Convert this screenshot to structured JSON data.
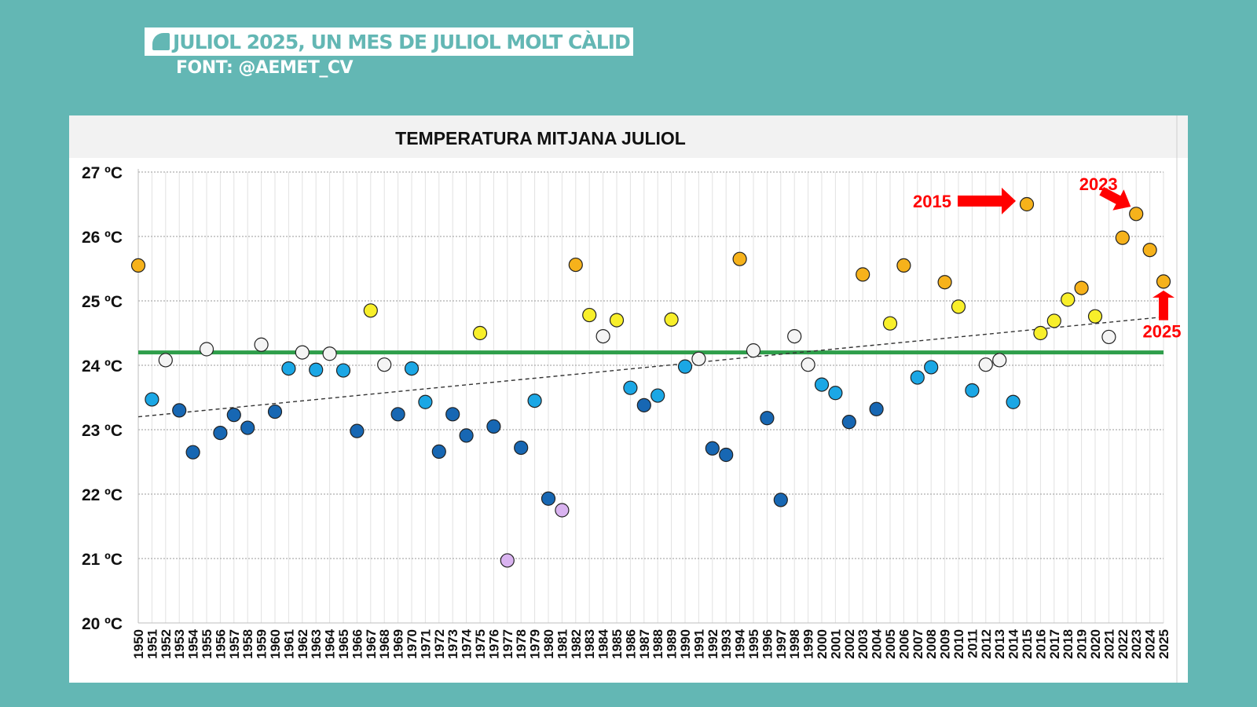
{
  "header": {
    "title": "JULIOL 2025, UN MES DE JULIOL MOLT CÀLID",
    "source": "FONT: @AEMET_CV"
  },
  "colors": {
    "background": "#63b7b4",
    "very_cold": "#1767b3",
    "cold": "#1ba7e5",
    "normal": "#f4f4f4",
    "warm": "#f8ef2a",
    "very_warm": "#f6b21b",
    "extremely_cold": "#d9b3f0",
    "average_line": "#2e9e4a",
    "annotation": "#ff0000"
  },
  "chart_data": {
    "type": "scatter",
    "title": "TEMPERATURA MITJANA JULIOL",
    "ylim": [
      20,
      27
    ],
    "yticks": [
      20,
      21,
      22,
      23,
      24,
      25,
      26,
      27
    ],
    "ytick_labels": [
      "20 ºC",
      "21 ºC",
      "22 ºC",
      "23 ºC",
      "24 ºC",
      "25 ºC",
      "26 ºC",
      "27 ºC"
    ],
    "x_tick_labels": [
      "1950",
      "1951",
      "1952",
      "1953",
      "1954",
      "1955",
      "1956",
      "1957",
      "1958",
      "1959",
      "1960",
      "1961",
      "1962",
      "1963",
      "1964",
      "1965",
      "1966",
      "1967",
      "1968",
      "1969",
      "1970",
      "1971",
      "1972",
      "1973",
      "1974",
      "1975",
      "1976",
      "1977",
      "1978",
      "1979",
      "1980",
      "1981",
      "1982",
      "1983",
      "1984",
      "1985",
      "1986",
      "1987",
      "1988",
      "1989",
      "1990",
      "1991",
      "1992",
      "1993",
      "1994",
      "1995",
      "1996",
      "1997",
      "1998",
      "1999",
      "2000",
      "2001",
      "2002",
      "2003",
      "2004",
      "2005",
      "2006",
      "2007",
      "2008",
      "2009",
      "2010",
      "2011",
      "2012",
      "2013",
      "2014",
      "2015",
      "2016",
      "2017",
      "2018",
      "2019",
      "2020",
      "2021",
      "2022",
      "2023",
      "2024",
      "2025"
    ],
    "reference_line": 24.2,
    "trend": {
      "start": 23.2,
      "end": 24.75
    },
    "points": [
      {
        "year": 1950,
        "value": 25.55,
        "category": "very_warm"
      },
      {
        "year": 1951,
        "value": 23.47,
        "category": "cold"
      },
      {
        "year": 1952,
        "value": 24.08,
        "category": "normal"
      },
      {
        "year": 1953,
        "value": 23.3,
        "category": "very_cold"
      },
      {
        "year": 1954,
        "value": 22.65,
        "category": "very_cold"
      },
      {
        "year": 1955,
        "value": 24.25,
        "category": "normal"
      },
      {
        "year": 1956,
        "value": 22.95,
        "category": "very_cold"
      },
      {
        "year": 1957,
        "value": 23.23,
        "category": "very_cold"
      },
      {
        "year": 1958,
        "value": 23.03,
        "category": "very_cold"
      },
      {
        "year": 1959,
        "value": 24.32,
        "category": "normal"
      },
      {
        "year": 1960,
        "value": 23.28,
        "category": "very_cold"
      },
      {
        "year": 1961,
        "value": 23.95,
        "category": "cold"
      },
      {
        "year": 1962,
        "value": 24.2,
        "category": "normal"
      },
      {
        "year": 1963,
        "value": 23.93,
        "category": "cold"
      },
      {
        "year": 1964,
        "value": 24.18,
        "category": "normal"
      },
      {
        "year": 1965,
        "value": 23.92,
        "category": "cold"
      },
      {
        "year": 1966,
        "value": 22.98,
        "category": "very_cold"
      },
      {
        "year": 1967,
        "value": 24.85,
        "category": "warm"
      },
      {
        "year": 1968,
        "value": 24.01,
        "category": "normal"
      },
      {
        "year": 1969,
        "value": 23.24,
        "category": "very_cold"
      },
      {
        "year": 1970,
        "value": 23.95,
        "category": "cold"
      },
      {
        "year": 1971,
        "value": 23.43,
        "category": "cold"
      },
      {
        "year": 1972,
        "value": 22.66,
        "category": "very_cold"
      },
      {
        "year": 1973,
        "value": 23.24,
        "category": "very_cold"
      },
      {
        "year": 1974,
        "value": 22.91,
        "category": "very_cold"
      },
      {
        "year": 1975,
        "value": 24.5,
        "category": "warm"
      },
      {
        "year": 1976,
        "value": 23.05,
        "category": "very_cold"
      },
      {
        "year": 1977,
        "value": 20.97,
        "category": "extremely_cold"
      },
      {
        "year": 1978,
        "value": 22.72,
        "category": "very_cold"
      },
      {
        "year": 1979,
        "value": 23.45,
        "category": "cold"
      },
      {
        "year": 1980,
        "value": 21.93,
        "category": "very_cold"
      },
      {
        "year": 1981,
        "value": 21.75,
        "category": "extremely_cold"
      },
      {
        "year": 1982,
        "value": 25.56,
        "category": "very_warm"
      },
      {
        "year": 1983,
        "value": 24.78,
        "category": "warm"
      },
      {
        "year": 1984,
        "value": 24.45,
        "category": "normal"
      },
      {
        "year": 1985,
        "value": 24.7,
        "category": "warm"
      },
      {
        "year": 1986,
        "value": 23.65,
        "category": "cold"
      },
      {
        "year": 1987,
        "value": 23.38,
        "category": "very_cold"
      },
      {
        "year": 1988,
        "value": 23.53,
        "category": "cold"
      },
      {
        "year": 1989,
        "value": 24.71,
        "category": "warm"
      },
      {
        "year": 1990,
        "value": 23.98,
        "category": "cold"
      },
      {
        "year": 1991,
        "value": 24.1,
        "category": "normal"
      },
      {
        "year": 1992,
        "value": 22.71,
        "category": "very_cold"
      },
      {
        "year": 1993,
        "value": 22.61,
        "category": "very_cold"
      },
      {
        "year": 1994,
        "value": 25.65,
        "category": "very_warm"
      },
      {
        "year": 1995,
        "value": 24.23,
        "category": "normal"
      },
      {
        "year": 1996,
        "value": 23.18,
        "category": "very_cold"
      },
      {
        "year": 1997,
        "value": 21.91,
        "category": "very_cold"
      },
      {
        "year": 1998,
        "value": 24.45,
        "category": "normal"
      },
      {
        "year": 1999,
        "value": 24.01,
        "category": "normal"
      },
      {
        "year": 2000,
        "value": 23.7,
        "category": "cold"
      },
      {
        "year": 2001,
        "value": 23.57,
        "category": "cold"
      },
      {
        "year": 2002,
        "value": 23.12,
        "category": "very_cold"
      },
      {
        "year": 2003,
        "value": 25.41,
        "category": "very_warm"
      },
      {
        "year": 2004,
        "value": 23.32,
        "category": "very_cold"
      },
      {
        "year": 2005,
        "value": 24.65,
        "category": "warm"
      },
      {
        "year": 2006,
        "value": 25.55,
        "category": "very_warm"
      },
      {
        "year": 2007,
        "value": 23.81,
        "category": "cold"
      },
      {
        "year": 2008,
        "value": 23.97,
        "category": "cold"
      },
      {
        "year": 2009,
        "value": 25.29,
        "category": "very_warm"
      },
      {
        "year": 2010,
        "value": 24.91,
        "category": "warm"
      },
      {
        "year": 2011,
        "value": 23.61,
        "category": "cold"
      },
      {
        "year": 2012,
        "value": 24.01,
        "category": "normal"
      },
      {
        "year": 2013,
        "value": 24.08,
        "category": "normal"
      },
      {
        "year": 2014,
        "value": 23.43,
        "category": "cold"
      },
      {
        "year": 2015,
        "value": 26.5,
        "category": "very_warm"
      },
      {
        "year": 2016,
        "value": 24.5,
        "category": "warm"
      },
      {
        "year": 2017,
        "value": 24.69,
        "category": "warm"
      },
      {
        "year": 2018,
        "value": 25.02,
        "category": "warm"
      },
      {
        "year": 2019,
        "value": 25.2,
        "category": "very_warm"
      },
      {
        "year": 2020,
        "value": 24.76,
        "category": "warm"
      },
      {
        "year": 2021,
        "value": 24.44,
        "category": "normal"
      },
      {
        "year": 2022,
        "value": 25.98,
        "category": "very_warm"
      },
      {
        "year": 2023,
        "value": 26.35,
        "category": "very_warm"
      },
      {
        "year": 2024,
        "value": 25.79,
        "category": "very_warm"
      },
      {
        "year": 2025,
        "value": 25.3,
        "category": "very_warm"
      }
    ],
    "annotations": [
      {
        "label": "2015",
        "year": 2015
      },
      {
        "label": "2023",
        "year": 2023
      },
      {
        "label": "2025",
        "year": 2025
      }
    ]
  }
}
